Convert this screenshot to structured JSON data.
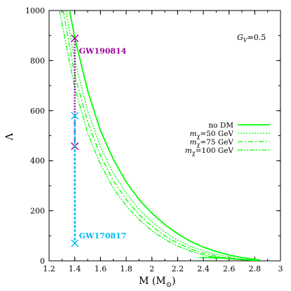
{
  "chart_data": {
    "type": "line",
    "xlabel": "M (M⊙)",
    "ylabel": "Λ",
    "xlim": [
      1.2,
      3.0
    ],
    "ylim": [
      0,
      1000
    ],
    "xticks": [
      "1.2",
      "1.4",
      "1.6",
      "1.8",
      "2",
      "2.2",
      "2.4",
      "2.6",
      "2.8",
      "3"
    ],
    "yticks": [
      "0",
      "200",
      "400",
      "600",
      "800",
      "1000"
    ],
    "grid": false,
    "legend_position": "middle-right",
    "annotation_top_right": "G_V=0.5",
    "series": [
      {
        "name": "no DM",
        "style": "solid",
        "color": "#00ff00",
        "points": [
          [
            1.36,
            1000
          ],
          [
            1.4,
            890
          ],
          [
            1.5,
            680
          ],
          [
            1.6,
            520
          ],
          [
            1.7,
            405
          ],
          [
            1.8,
            315
          ],
          [
            1.9,
            245
          ],
          [
            2.0,
            190
          ],
          [
            2.1,
            145
          ],
          [
            2.2,
            108
          ],
          [
            2.3,
            78
          ],
          [
            2.4,
            55
          ],
          [
            2.5,
            37
          ],
          [
            2.6,
            23
          ],
          [
            2.7,
            13
          ],
          [
            2.8,
            6
          ],
          [
            2.84,
            3
          ],
          [
            2.8,
            2
          ],
          [
            2.7,
            5
          ],
          [
            2.6,
            9
          ],
          [
            2.5,
            14
          ],
          [
            2.44,
            17
          ]
        ]
      },
      {
        "name": "mχ=50 GeV",
        "style": "dotted",
        "color": "#00ff00",
        "points": [
          [
            1.33,
            1000
          ],
          [
            1.4,
            800
          ],
          [
            1.5,
            600
          ],
          [
            1.6,
            455
          ],
          [
            1.7,
            350
          ],
          [
            1.8,
            270
          ],
          [
            1.9,
            205
          ],
          [
            2.0,
            155
          ],
          [
            2.1,
            115
          ],
          [
            2.2,
            82
          ],
          [
            2.3,
            58
          ],
          [
            2.4,
            40
          ],
          [
            2.5,
            26
          ],
          [
            2.6,
            15
          ],
          [
            2.65,
            10
          ],
          [
            2.6,
            8
          ],
          [
            2.5,
            12
          ],
          [
            2.4,
            14
          ]
        ]
      },
      {
        "name": "mχ=75 GeV",
        "style": "dash-dot",
        "color": "#00ff00",
        "points": [
          [
            1.31,
            1000
          ],
          [
            1.4,
            740
          ],
          [
            1.5,
            555
          ],
          [
            1.6,
            420
          ],
          [
            1.7,
            320
          ],
          [
            1.8,
            245
          ],
          [
            1.9,
            185
          ],
          [
            2.0,
            138
          ],
          [
            2.1,
            100
          ],
          [
            2.2,
            70
          ],
          [
            2.3,
            48
          ],
          [
            2.4,
            31
          ],
          [
            2.5,
            19
          ],
          [
            2.57,
            12
          ],
          [
            2.5,
            10
          ],
          [
            2.4,
            13
          ]
        ]
      },
      {
        "name": "mχ=100 GeV",
        "style": "dash-dot-dot",
        "color": "#00ff00",
        "points": [
          [
            1.28,
            1000
          ],
          [
            1.4,
            690
          ],
          [
            1.5,
            510
          ],
          [
            1.6,
            385
          ],
          [
            1.7,
            290
          ],
          [
            1.8,
            220
          ],
          [
            1.9,
            165
          ],
          [
            2.0,
            120
          ],
          [
            2.1,
            86
          ],
          [
            2.2,
            59
          ],
          [
            2.3,
            39
          ],
          [
            2.4,
            24
          ],
          [
            2.48,
            15
          ],
          [
            2.4,
            12
          ],
          [
            2.35,
            14
          ]
        ]
      }
    ],
    "constraints": [
      {
        "label": "GW190814",
        "color": "#990099",
        "style": "dotted",
        "x": 1.4,
        "lower": 458,
        "upper": 889
      },
      {
        "label": "GW170817",
        "color": "#00bbee",
        "style": "dashed",
        "x": 1.4,
        "lower": 70,
        "upper": 580
      }
    ]
  },
  "legend": {
    "items": [
      {
        "prefix": "no DM",
        "sub": "",
        "suffix": ""
      },
      {
        "prefix": "m",
        "sub": "χ",
        "suffix": "=50 GeV"
      },
      {
        "prefix": "m",
        "sub": "χ",
        "suffix": "=75 GeV"
      },
      {
        "prefix": "m",
        "sub": "χ",
        "suffix": "=100 GeV"
      }
    ]
  },
  "gv_label": {
    "main": "G",
    "sub": "V",
    "suffix": "=0.5"
  },
  "axis_titles": {
    "x_main": "M (M",
    "x_sub": "⊙",
    "x_end": ")",
    "y": "Λ"
  }
}
